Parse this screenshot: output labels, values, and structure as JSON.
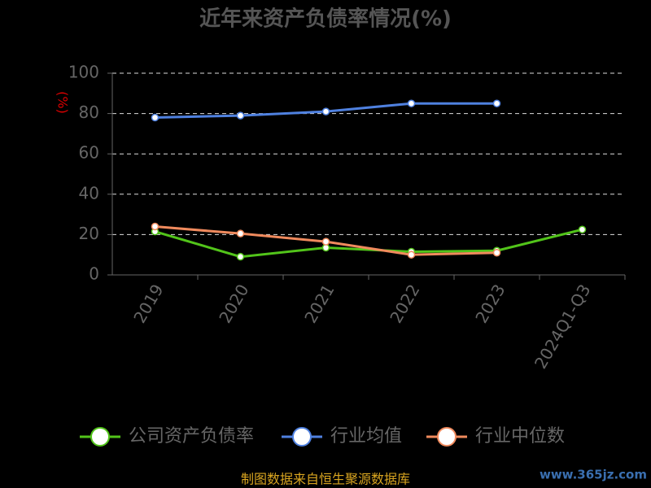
{
  "chart_data": {
    "type": "line",
    "title": "近年来资产负债率情况(%)",
    "y_label": "(%)",
    "categories": [
      "2019",
      "2020",
      "2021",
      "2022",
      "2023",
      "2024Q1-Q3"
    ],
    "series": [
      {
        "name": "公司资产负债率",
        "color": "#52c41a",
        "values": [
          21.5,
          9,
          13.5,
          11.5,
          12,
          22.5
        ]
      },
      {
        "name": "行业均值",
        "color": "#4f81e0",
        "values": [
          78,
          79,
          81,
          85,
          85,
          null
        ]
      },
      {
        "name": "行业中位数",
        "color": "#f08a5d",
        "values": [
          24,
          20.5,
          16.5,
          10,
          11,
          null
        ]
      }
    ],
    "ylim": [
      0,
      100
    ],
    "yticks": [
      0,
      20,
      40,
      60,
      80,
      100
    ],
    "grid": true,
    "footer": "制图数据来自恒生聚源数据库",
    "watermark": "www.365jz.com"
  }
}
